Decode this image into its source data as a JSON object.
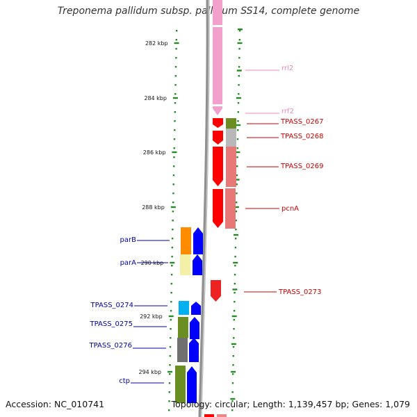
{
  "title": "Treponema pallidum subsp. pallidum SS14, complete genome",
  "footer": {
    "accession": "Accession: NC_010741",
    "summary": "Topology: circular; Length: 1,139,457 bp; Genes: 1,079"
  },
  "colors": {
    "forward_label": "#cc0000",
    "reverse_label": "#0000aa",
    "rna_label": "#ee88bb",
    "backbone": "#808080",
    "ruler": "#228b22"
  },
  "ticks": [
    {
      "label": "282 kbp",
      "kbp": 282
    },
    {
      "label": "284 kbp",
      "kbp": 284
    },
    {
      "label": "286 kbp",
      "kbp": 286
    },
    {
      "label": "288 kbp",
      "kbp": 288
    },
    {
      "label": "290 kbp",
      "kbp": 290
    },
    {
      "label": "292 kbp",
      "kbp": 292
    },
    {
      "label": "294 kbp",
      "kbp": 294
    }
  ],
  "genes": [
    {
      "name": "rrl2",
      "strand": "forward",
      "type": "rRNA"
    },
    {
      "name": "rrf2",
      "strand": "forward",
      "type": "rRNA"
    },
    {
      "name": "TPASS_0267",
      "strand": "forward",
      "type": "CDS"
    },
    {
      "name": "TPASS_0268",
      "strand": "forward",
      "type": "CDS"
    },
    {
      "name": "TPASS_0269",
      "strand": "forward",
      "type": "CDS"
    },
    {
      "name": "pcnA",
      "strand": "forward",
      "type": "CDS"
    },
    {
      "name": "TPASS_0273",
      "strand": "forward",
      "type": "CDS"
    },
    {
      "name": "parB",
      "strand": "reverse",
      "type": "CDS"
    },
    {
      "name": "parA",
      "strand": "reverse",
      "type": "CDS"
    },
    {
      "name": "TPASS_0274",
      "strand": "reverse",
      "type": "CDS"
    },
    {
      "name": "TPASS_0275",
      "strand": "reverse",
      "type": "CDS"
    },
    {
      "name": "TPASS_0276",
      "strand": "reverse",
      "type": "CDS"
    },
    {
      "name": "ctp",
      "strand": "reverse",
      "type": "CDS"
    }
  ]
}
